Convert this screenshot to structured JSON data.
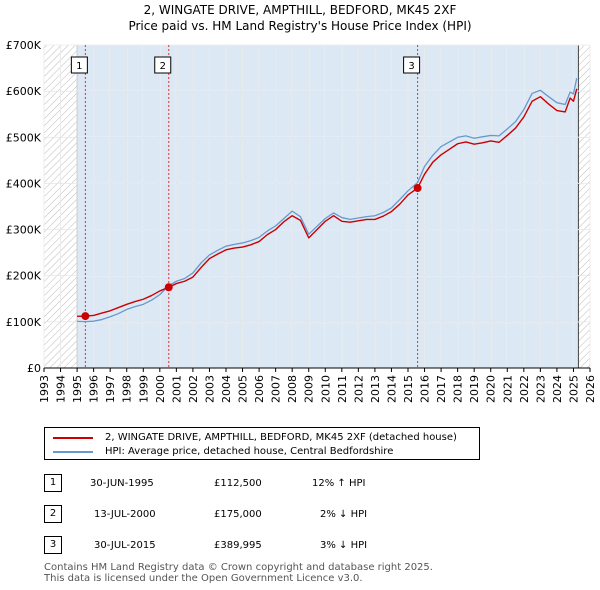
{
  "title_line1": "2, WINGATE DRIVE, AMPTHILL, BEDFORD, MK45 2XF",
  "title_line2": "Price paid vs. HM Land Registry's House Price Index (HPI)",
  "legend": {
    "property_label": "2, WINGATE DRIVE, AMPTHILL, BEDFORD, MK45 2XF (detached house)",
    "hpi_label": "HPI: Average price, detached house, Central Bedfordshire"
  },
  "transactions": [
    {
      "num": "1",
      "date": "30-JUN-1995",
      "price": "£112,500",
      "hpi": "12% ↑ HPI"
    },
    {
      "num": "2",
      "date": "13-JUL-2000",
      "price": "£175,000",
      "hpi": "2% ↓ HPI"
    },
    {
      "num": "3",
      "date": "30-JUL-2015",
      "price": "£389,995",
      "hpi": "3% ↓ HPI"
    }
  ],
  "footer_line1": "Contains HM Land Registry data © Crown copyright and database right 2025.",
  "footer_line2": "This data is licensed under the Open Government Licence v3.0.",
  "chart_data": {
    "type": "line",
    "title": "2, WINGATE DRIVE, AMPTHILL, BEDFORD, MK45 2XF",
    "subtitle": "Price paid vs. HM Land Registry's House Price Index (HPI)",
    "xlabel": "",
    "ylabel": "",
    "xlim": [
      1993,
      2026
    ],
    "ylim": [
      0,
      700000
    ],
    "x_ticks": [
      1993,
      1994,
      1995,
      1996,
      1997,
      1998,
      1999,
      2000,
      2001,
      2002,
      2003,
      2004,
      2005,
      2006,
      2007,
      2008,
      2009,
      2010,
      2011,
      2012,
      2013,
      2014,
      2015,
      2016,
      2017,
      2018,
      2019,
      2020,
      2021,
      2022,
      2023,
      2024,
      2025,
      2026
    ],
    "y_ticks": [
      0,
      100000,
      200000,
      300000,
      400000,
      500000,
      600000,
      700000
    ],
    "y_tick_labels": [
      "£0",
      "£100K",
      "£200K",
      "£300K",
      "£400K",
      "£500K",
      "£600K",
      "£700K"
    ],
    "grid": true,
    "colors": {
      "property": "#cc0000",
      "hpi": "#6699cc",
      "shade": "#dde8f5",
      "hatch": "#bbbbbb",
      "vline": "#dd3333"
    },
    "shade_range": [
      1995.0,
      2025.3
    ],
    "hatch_left": [
      1993,
      1995.0
    ],
    "hatch_right": [
      2025.3,
      2026
    ],
    "series": [
      {
        "name": "2, WINGATE DRIVE, AMPTHILL, BEDFORD, MK45 2XF (detached house)",
        "x": [
          1995.0,
          1995.5,
          1996.0,
          1996.5,
          1997.0,
          1997.5,
          1998.0,
          1998.5,
          1999.0,
          1999.5,
          2000.0,
          2000.54,
          2001.0,
          2001.5,
          2002.0,
          2002.5,
          2003.0,
          2003.5,
          2004.0,
          2004.5,
          2005.0,
          2005.5,
          2006.0,
          2006.5,
          2007.0,
          2007.5,
          2008.0,
          2008.5,
          2009.0,
          2009.5,
          2010.0,
          2010.5,
          2011.0,
          2011.5,
          2012.0,
          2012.5,
          2013.0,
          2013.5,
          2014.0,
          2014.5,
          2015.0,
          2015.58,
          2016.0,
          2016.5,
          2017.0,
          2017.5,
          2018.0,
          2018.5,
          2019.0,
          2019.5,
          2020.0,
          2020.5,
          2021.0,
          2021.5,
          2022.0,
          2022.5,
          2023.0,
          2023.5,
          2024.0,
          2024.5,
          2024.8,
          2025.0,
          2025.2
        ],
        "values": [
          112000,
          112500,
          114000,
          119000,
          124000,
          131000,
          138000,
          144000,
          149000,
          157000,
          167000,
          175000,
          183000,
          188000,
          197000,
          218000,
          237000,
          247000,
          256000,
          260000,
          262000,
          267000,
          274000,
          289000,
          300000,
          317000,
          330000,
          320000,
          282000,
          300000,
          318000,
          330000,
          318000,
          316000,
          319000,
          322000,
          322000,
          329000,
          339000,
          355000,
          375000,
          389995,
          420000,
          446000,
          462000,
          474000,
          486000,
          490000,
          485000,
          488000,
          492000,
          489000,
          504000,
          520000,
          544000,
          578000,
          588000,
          572000,
          558000,
          555000,
          585000,
          578000,
          605000
        ]
      },
      {
        "name": "HPI: Average price, detached house, Central Bedfordshire",
        "x": [
          1995.0,
          1995.5,
          1996.0,
          1996.5,
          1997.0,
          1997.5,
          1998.0,
          1998.5,
          1999.0,
          1999.5,
          2000.0,
          2000.54,
          2001.0,
          2001.5,
          2002.0,
          2002.5,
          2003.0,
          2003.5,
          2004.0,
          2004.5,
          2005.0,
          2005.5,
          2006.0,
          2006.5,
          2007.0,
          2007.5,
          2008.0,
          2008.5,
          2009.0,
          2009.5,
          2010.0,
          2010.5,
          2011.0,
          2011.5,
          2012.0,
          2012.5,
          2013.0,
          2013.5,
          2014.0,
          2014.5,
          2015.0,
          2015.58,
          2016.0,
          2016.5,
          2017.0,
          2017.5,
          2018.0,
          2018.5,
          2019.0,
          2019.5,
          2020.0,
          2020.5,
          2021.0,
          2021.5,
          2022.0,
          2022.5,
          2023.0,
          2023.5,
          2024.0,
          2024.5,
          2024.8,
          2025.0,
          2025.2
        ],
        "values": [
          101000,
          100500,
          101500,
          105000,
          111000,
          118000,
          127000,
          133000,
          138000,
          147000,
          159000,
          178500,
          188000,
          194000,
          206000,
          228000,
          245000,
          255000,
          264000,
          268000,
          271000,
          276000,
          283000,
          297000,
          308000,
          324000,
          340000,
          328000,
          290000,
          307000,
          324000,
          336000,
          326000,
          322000,
          325000,
          328000,
          330000,
          337000,
          347000,
          365000,
          384000,
          402000,
          437000,
          461000,
          480000,
          490000,
          500000,
          503000,
          498000,
          501000,
          504000,
          503000,
          518000,
          534000,
          560000,
          595000,
          602000,
          588000,
          575000,
          571000,
          598000,
          594000,
          628000
        ]
      }
    ],
    "markers": [
      {
        "label": "1",
        "x": 1995.5,
        "y": 112500
      },
      {
        "label": "2",
        "x": 2000.54,
        "y": 175000
      },
      {
        "label": "3",
        "x": 2015.58,
        "y": 389995
      }
    ]
  }
}
